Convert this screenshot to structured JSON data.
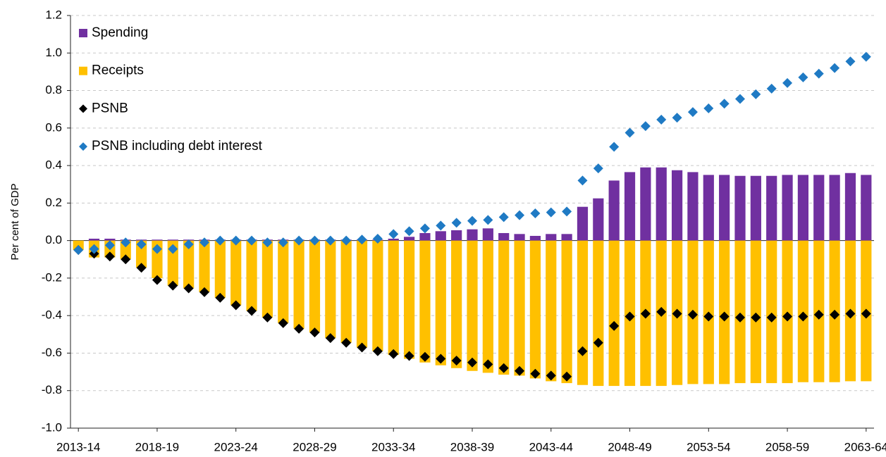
{
  "chart_data": {
    "type": "bar",
    "y_label": "Per cent of GDP",
    "categories": [
      "2013-14",
      null,
      null,
      null,
      null,
      "2018-19",
      null,
      null,
      null,
      null,
      "2023-24",
      null,
      null,
      null,
      null,
      "2028-29",
      null,
      null,
      null,
      null,
      "2033-34",
      null,
      null,
      null,
      null,
      "2038-39",
      null,
      null,
      null,
      null,
      "2043-44",
      null,
      null,
      null,
      null,
      "2048-49",
      null,
      null,
      null,
      null,
      "2053-54",
      null,
      null,
      null,
      null,
      "2058-59",
      null,
      null,
      null,
      null,
      "2063-64"
    ],
    "series": [
      {
        "name": "Spending",
        "type": "bar",
        "color": "#7030a0",
        "values": [
          0,
          0.01,
          0.01,
          0.005,
          0.005,
          0.005,
          0.005,
          0.005,
          0.005,
          0.005,
          0.005,
          0.005,
          0.005,
          0.005,
          0.005,
          0.005,
          0.005,
          0.005,
          0.005,
          0.005,
          0.01,
          0.02,
          0.04,
          0.05,
          0.055,
          0.06,
          0.065,
          0.04,
          0.035,
          0.025,
          0.035,
          0.035,
          0.18,
          0.225,
          0.32,
          0.365,
          0.39,
          0.39,
          0.375,
          0.365,
          0.35,
          0.35,
          0.345,
          0.345,
          0.345,
          0.35,
          0.35,
          0.35,
          0.35,
          0.36,
          0.35
        ]
      },
      {
        "name": "Receipts",
        "type": "bar",
        "color": "#ffc000",
        "values": [
          -0.05,
          -0.09,
          -0.09,
          -0.1,
          -0.145,
          -0.2,
          -0.24,
          -0.255,
          -0.275,
          -0.305,
          -0.345,
          -0.375,
          -0.41,
          -0.44,
          -0.47,
          -0.49,
          -0.52,
          -0.545,
          -0.57,
          -0.59,
          -0.61,
          -0.63,
          -0.65,
          -0.665,
          -0.68,
          -0.695,
          -0.705,
          -0.715,
          -0.72,
          -0.735,
          -0.75,
          -0.76,
          -0.77,
          -0.775,
          -0.775,
          -0.775,
          -0.775,
          -0.775,
          -0.77,
          -0.765,
          -0.765,
          -0.765,
          -0.76,
          -0.76,
          -0.76,
          -0.76,
          -0.755,
          -0.755,
          -0.755,
          -0.75,
          -0.75
        ]
      },
      {
        "name": "PSNB",
        "type": "scatter",
        "color": "#000000",
        "values": [
          -0.05,
          -0.07,
          -0.085,
          -0.1,
          -0.145,
          -0.21,
          -0.24,
          -0.255,
          -0.275,
          -0.305,
          -0.345,
          -0.375,
          -0.41,
          -0.44,
          -0.47,
          -0.49,
          -0.52,
          -0.545,
          -0.57,
          -0.59,
          -0.605,
          -0.615,
          -0.62,
          -0.63,
          -0.64,
          -0.65,
          -0.66,
          -0.68,
          -0.695,
          -0.71,
          -0.72,
          -0.725,
          -0.59,
          -0.545,
          -0.455,
          -0.405,
          -0.39,
          -0.38,
          -0.39,
          -0.395,
          -0.405,
          -0.405,
          -0.41,
          -0.41,
          -0.41,
          -0.405,
          -0.405,
          -0.395,
          -0.395,
          -0.39,
          -0.39
        ]
      },
      {
        "name": "PSNB including debt interest",
        "type": "scatter",
        "color": "#1f7ac4",
        "values": [
          -0.05,
          -0.045,
          -0.025,
          -0.01,
          -0.02,
          -0.045,
          -0.045,
          -0.02,
          -0.01,
          0,
          0,
          0,
          -0.01,
          -0.01,
          0,
          0,
          0,
          0,
          0.005,
          0.01,
          0.035,
          0.05,
          0.065,
          0.08,
          0.095,
          0.105,
          0.11,
          0.125,
          0.135,
          0.145,
          0.15,
          0.155,
          0.32,
          0.385,
          0.5,
          0.575,
          0.61,
          0.645,
          0.655,
          0.685,
          0.705,
          0.73,
          0.755,
          0.78,
          0.81,
          0.84,
          0.87,
          0.89,
          0.92,
          0.955,
          0.98
        ]
      }
    ],
    "ylim": [
      -1.0,
      1.2
    ],
    "yticks": [
      {
        "value": -1.0,
        "label": "-1.0"
      },
      -0.8,
      -0.6,
      -0.4,
      -0.2,
      {
        "value": 0,
        "label": "0.0"
      },
      0.2,
      0.4,
      0.6,
      0.8,
      {
        "value": 1.0,
        "label": "1.0"
      },
      1.2
    ],
    "grid": true,
    "legend": "top-left"
  }
}
